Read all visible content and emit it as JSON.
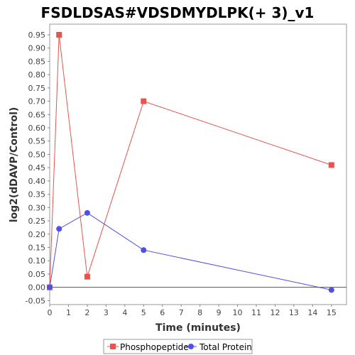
{
  "chart_data": {
    "type": "line",
    "title": "FSDLDSAS#VDSDMYDLPK(+ 3)_v1",
    "xlabel": "Time (minutes)",
    "ylabel": "log2(dDAVP/Control)",
    "xlim": [
      0,
      15.8
    ],
    "ylim": [
      -0.065,
      0.99
    ],
    "xticks": [
      0,
      1,
      2,
      3,
      4,
      5,
      6,
      7,
      8,
      9,
      10,
      11,
      12,
      13,
      14,
      15
    ],
    "yticks": [
      -0.05,
      0.0,
      0.05,
      0.1,
      0.15,
      0.2,
      0.25,
      0.3,
      0.35,
      0.4,
      0.45,
      0.5,
      0.55,
      0.6,
      0.65,
      0.7,
      0.75,
      0.8,
      0.85,
      0.9,
      0.95
    ],
    "ytick_labels": [
      "-0.05",
      "0.00",
      "0.05",
      "0.10",
      "0.15",
      "0.20",
      "0.25",
      "0.30",
      "0.35",
      "0.40",
      "0.45",
      "0.50",
      "0.55",
      "0.60",
      "0.65",
      "0.70",
      "0.75",
      "0.80",
      "0.85",
      "0.90",
      "0.95"
    ],
    "zero_line": true,
    "grid": false,
    "legend_position": "bottom",
    "series": [
      {
        "name": "Phosphopeptide",
        "color": "#e8534f",
        "marker": "square",
        "x": [
          0,
          0.5,
          2,
          5,
          15
        ],
        "y": [
          0.0,
          0.95,
          0.04,
          0.7,
          0.46
        ]
      },
      {
        "name": "Total Protein",
        "color": "#5050e8",
        "marker": "circle",
        "x": [
          0,
          0.5,
          2,
          5,
          15
        ],
        "y": [
          0.0,
          0.22,
          0.28,
          0.14,
          -0.01
        ]
      }
    ]
  }
}
